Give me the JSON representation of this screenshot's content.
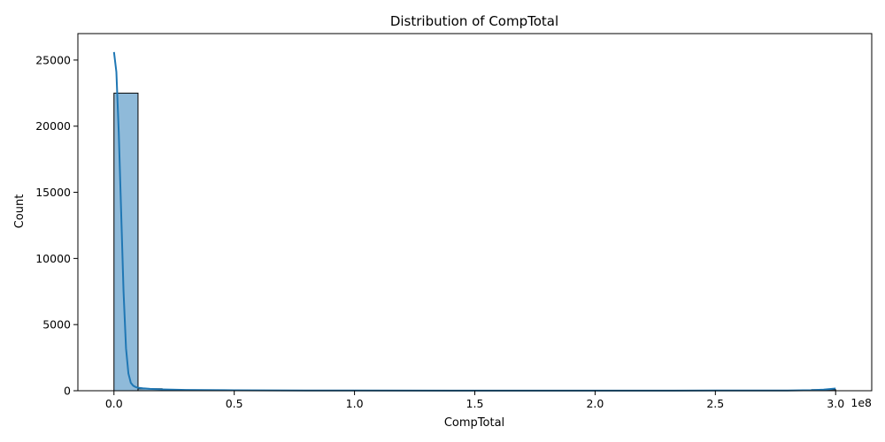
{
  "chart_data": {
    "type": "bar",
    "title": "Distribution of CompTotal",
    "xlabel": "CompTotal",
    "ylabel": "Count",
    "x_offset_label": "1e8",
    "xlim": [
      -0.15,
      3.15
    ],
    "ylim": [
      0,
      27000
    ],
    "x_ticks": [
      0.0,
      0.5,
      1.0,
      1.5,
      2.0,
      2.5,
      3.0
    ],
    "x_tick_labels": [
      "0.0",
      "0.5",
      "1.0",
      "1.5",
      "2.0",
      "2.5",
      "3.0"
    ],
    "y_ticks": [
      0,
      5000,
      10000,
      15000,
      20000,
      25000
    ],
    "y_tick_labels": [
      "0",
      "5000",
      "10000",
      "15000",
      "20000",
      "25000"
    ],
    "bin_edges": [
      0.0,
      0.1,
      0.2,
      0.3,
      0.4,
      0.5,
      0.6,
      0.7,
      0.8,
      0.9,
      1.0,
      1.1,
      1.2,
      1.3,
      1.4,
      1.5,
      1.6,
      1.7,
      1.8,
      1.9,
      2.0,
      2.1,
      2.2,
      2.3,
      2.4,
      2.5,
      2.6,
      2.7,
      2.8,
      2.9,
      3.0
    ],
    "counts": [
      22500,
      150,
      40,
      15,
      8,
      5,
      3,
      2,
      2,
      3,
      4,
      1,
      1,
      1,
      1,
      2,
      1,
      1,
      1,
      1,
      2,
      1,
      1,
      1,
      1,
      1,
      1,
      1,
      1,
      80
    ],
    "kde": {
      "x": [
        0.0,
        0.01,
        0.02,
        0.03,
        0.04,
        0.05,
        0.06,
        0.07,
        0.08,
        0.09,
        0.1,
        0.12,
        0.15,
        0.2,
        0.3,
        0.5,
        0.8,
        1.0,
        1.5,
        2.0,
        2.5,
        2.8,
        2.9,
        2.95,
        3.0
      ],
      "y": [
        25600,
        24100,
        19500,
        13500,
        7500,
        3200,
        1300,
        600,
        380,
        280,
        230,
        180,
        140,
        100,
        60,
        35,
        20,
        15,
        10,
        10,
        12,
        20,
        40,
        90,
        170
      ]
    },
    "bar_color": "#8fbad9",
    "bar_edge_color": "#000000",
    "line_color": "#1f77b4",
    "grid": false
  }
}
